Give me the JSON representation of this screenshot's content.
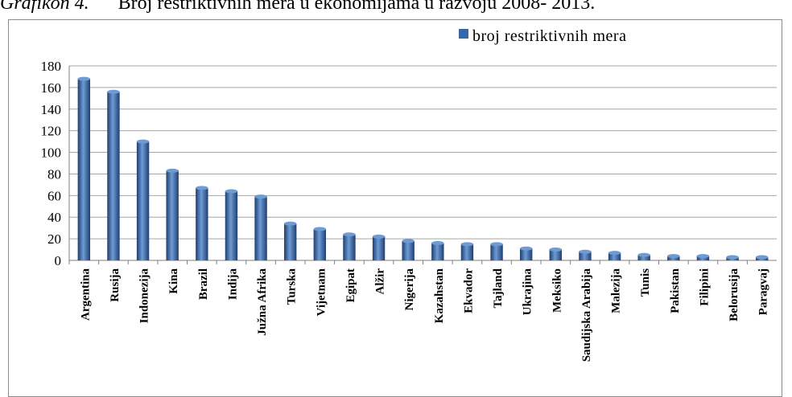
{
  "caption": {
    "lead": "Grafikon 4.",
    "text": "Broj restriktivnih mera u ekonomijama u razvoju 2008- 2013."
  },
  "colors": {
    "bar": "#3466a8",
    "bar_light": "#6f9bd3",
    "bar_dark": "#1d3f73",
    "grid": "#a6a6a6",
    "axis": "#7f7f7f"
  },
  "chart_data": {
    "type": "bar",
    "title": "",
    "xlabel": "",
    "ylabel": "",
    "ylim": [
      0,
      180
    ],
    "yticks": [
      0,
      20,
      40,
      60,
      80,
      100,
      120,
      140,
      160,
      180
    ],
    "grid": true,
    "legend_position": "top-right",
    "categories": [
      "Argentina",
      "Rusija",
      "Indonezija",
      "Kina",
      "Brazil",
      "Indija",
      "Južna Afrika",
      "Turska",
      "Vijetnam",
      "Egipat",
      "Alžir",
      "Nigerija",
      "Kazahstan",
      "Ekvador",
      "Tajland",
      "Ukrajina",
      "Meksiko",
      "Saudijska Arabija",
      "Malezija",
      "Tunis",
      "Pakistan",
      "Filipini",
      "Belorusija",
      "Paragvaj"
    ],
    "series": [
      {
        "name": "broj restriktivnih mera",
        "values": [
          168,
          156,
          110,
          83,
          67,
          64,
          59,
          34,
          29,
          24,
          22,
          18,
          16,
          15,
          15,
          11,
          10,
          8,
          7,
          5,
          4,
          4,
          3,
          3
        ]
      }
    ]
  }
}
